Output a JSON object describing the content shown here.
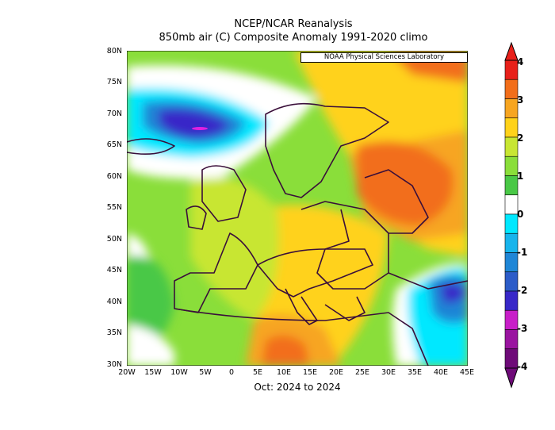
{
  "title": "NCEP/NCAR Reanalysis",
  "subtitle": "850mb air (C) Composite Anomaly 1991-2020 climo",
  "xlabel": "Oct: 2024 to 2024",
  "credit": "NOAA Physical Sciences Laboratory",
  "lat_ticks": [
    "80N",
    "75N",
    "70N",
    "65N",
    "60N",
    "55N",
    "50N",
    "45N",
    "40N",
    "35N",
    "30N"
  ],
  "lon_ticks": [
    "20W",
    "15W",
    "10W",
    "5W",
    "0",
    "5E",
    "10E",
    "15E",
    "20E",
    "25E",
    "30E",
    "35E",
    "40E",
    "45E"
  ],
  "colorbar": {
    "labels": [
      "4",
      "3",
      "2",
      "1",
      "0",
      "-1",
      "-2",
      "-3",
      "-4"
    ],
    "colors": [
      "#e8201a",
      "#f26e1a",
      "#f7a521",
      "#ffd21a",
      "#c8e632",
      "#8ade3a",
      "#49c846",
      "#ffffff",
      "#00e8ff",
      "#17b4ec",
      "#1f86d6",
      "#2c5cc8",
      "#3828c8",
      "#c81ec8",
      "#9a14a0",
      "#6e0a78"
    ]
  },
  "map": {
    "extent": {
      "lon": [
        -20,
        45
      ],
      "lat": [
        30,
        80
      ]
    },
    "features": [
      "strong cold anomaly near Iceland/Norwegian Sea",
      "warm anomaly over NW Russia",
      "warm anomaly over Libya/Sahara",
      "cold anomaly over Caucasus/Anatolia"
    ]
  }
}
